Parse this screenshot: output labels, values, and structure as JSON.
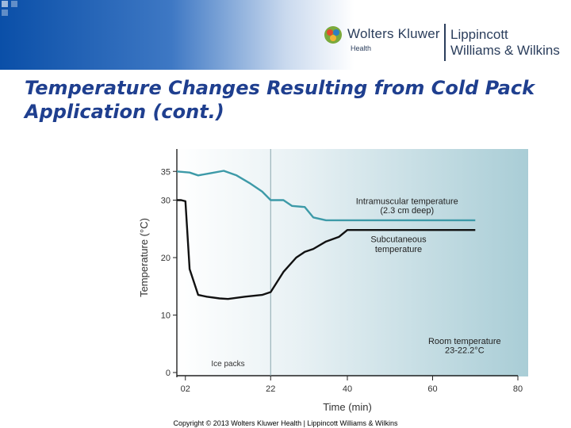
{
  "header": {
    "brand_wk": "Wolters Kluwer",
    "brand_health": "Health",
    "brand_lww_line1": "Lippincott",
    "brand_lww_line2": "Williams & Wilkins"
  },
  "slide_title": "Temperature Changes Resulting from Cold Pack Application (cont.)",
  "copyright": "Copyright © 2013 Wolters Kluwer Health | Lippincott Williams & Wilkins",
  "colors": {
    "title": "#1f3f8f",
    "intramuscular": "#3d9aa8",
    "subcutaneous": "#111111",
    "plot_bg_left": "#ffffff",
    "plot_bg_right": "#a9cdd6"
  },
  "chart_data": {
    "type": "line",
    "title": "",
    "xlabel": "Time (min)",
    "ylabel": "Temperature (°C)",
    "xlim": [
      0,
      80
    ],
    "ylim": [
      0,
      40
    ],
    "x_ticks": [
      2,
      22,
      40,
      60,
      80
    ],
    "x_tick_labels": [
      "02",
      "22",
      "40",
      "60",
      "80"
    ],
    "y_ticks": [
      0,
      10,
      20,
      30,
      35
    ],
    "y_tick_labels": [
      "0",
      "10",
      "20",
      "30",
      "35"
    ],
    "reference_line": {
      "x": 22,
      "label": "Ice packs"
    },
    "series": [
      {
        "name": "Intramuscular temperature",
        "label_line1": "Intramuscular temperature",
        "label_line2": "(2.3 cm deep)",
        "x": [
          0,
          3,
          5,
          8,
          11,
          14,
          17,
          20,
          22,
          25,
          27,
          30,
          32,
          35,
          40,
          45,
          50,
          55,
          60,
          65,
          70
        ],
        "y": [
          35,
          34.8,
          34.3,
          34.7,
          35.1,
          34.3,
          33,
          31.5,
          30,
          30,
          29,
          28.8,
          27,
          26.5,
          26.5,
          26.5,
          26.5,
          26.5,
          26.5,
          26.5,
          26.5
        ]
      },
      {
        "name": "Subcutaneous temperature",
        "label_line1": "Subcutaneous",
        "label_line2": "temperature",
        "x": [
          0,
          1,
          2,
          3,
          5,
          7,
          10,
          12,
          16,
          20,
          22,
          25,
          28,
          30,
          32,
          35,
          38,
          40,
          45,
          50,
          55,
          60,
          65,
          70
        ],
        "y": [
          30,
          30,
          29.8,
          18,
          13.5,
          13.2,
          12.9,
          12.8,
          13.2,
          13.5,
          14,
          17.5,
          20,
          21,
          21.5,
          22.8,
          23.6,
          24.8,
          24.8,
          24.8,
          24.8,
          24.8,
          24.8,
          24.8
        ]
      }
    ],
    "annotations": [
      {
        "line1": "Room temperature",
        "line2": "23-22.2°C"
      }
    ]
  }
}
